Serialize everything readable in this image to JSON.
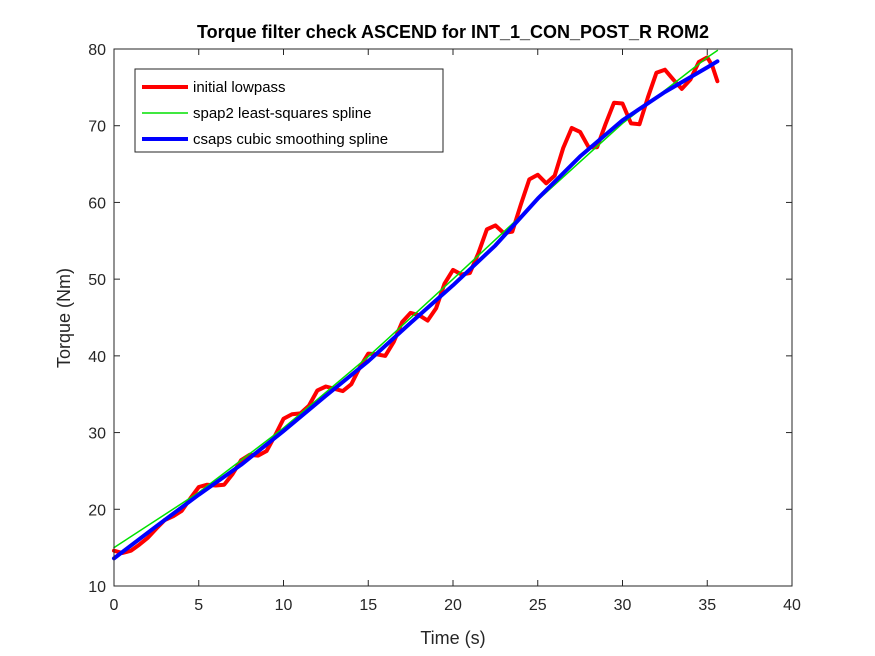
{
  "chart_data": {
    "type": "line",
    "title": "Torque filter check ASCEND for INT_1_CON_POST_R ROM2",
    "xlabel": "Time (s)",
    "ylabel": "Torque (Nm)",
    "xlim": [
      0,
      40
    ],
    "ylim": [
      10,
      80
    ],
    "xticks": [
      0,
      5,
      10,
      15,
      20,
      25,
      30,
      35,
      40
    ],
    "yticks": [
      10,
      20,
      30,
      40,
      50,
      60,
      70,
      80
    ],
    "grid": false,
    "legend_position": "top-left",
    "series": [
      {
        "name": "initial lowpass",
        "color": "#ff0000",
        "x": [
          0.0,
          0.5,
          1.0,
          1.5,
          2.0,
          2.5,
          3.0,
          3.5,
          4.0,
          4.5,
          5.0,
          5.5,
          6.0,
          6.5,
          7.0,
          7.5,
          8.0,
          8.5,
          9.0,
          9.5,
          10.0,
          10.5,
          11.0,
          11.5,
          12.0,
          12.5,
          13.0,
          13.5,
          14.0,
          14.5,
          15.0,
          15.5,
          16.0,
          16.5,
          17.0,
          17.5,
          18.0,
          18.5,
          19.0,
          19.5,
          20.0,
          20.5,
          21.0,
          21.5,
          22.0,
          22.5,
          23.0,
          23.5,
          24.0,
          24.5,
          25.0,
          25.5,
          26.0,
          26.5,
          27.0,
          27.5,
          28.0,
          28.5,
          29.0,
          29.5,
          30.0,
          30.5,
          31.0,
          31.5,
          32.0,
          32.5,
          33.0,
          33.5,
          34.0,
          34.5,
          35.0,
          35.3,
          35.6
        ],
        "values": [
          14.6,
          14.3,
          14.6,
          15.4,
          16.3,
          17.5,
          18.6,
          19.1,
          19.8,
          21.4,
          22.9,
          23.2,
          23.1,
          23.2,
          24.6,
          26.4,
          27.1,
          27.0,
          27.6,
          29.6,
          31.8,
          32.4,
          32.5,
          33.5,
          35.5,
          36.0,
          35.7,
          35.4,
          36.3,
          38.5,
          40.3,
          40.2,
          40.0,
          41.8,
          44.4,
          45.6,
          45.3,
          44.6,
          46.2,
          49.4,
          51.2,
          50.6,
          50.8,
          53.4,
          56.5,
          57.0,
          56.0,
          56.2,
          59.7,
          63.0,
          63.6,
          62.5,
          63.5,
          67.1,
          69.7,
          69.2,
          67.2,
          67.2,
          70.2,
          73.0,
          72.9,
          70.3,
          70.2,
          73.7,
          76.9,
          77.3,
          76.0,
          74.8,
          76.0,
          78.3,
          78.9,
          77.8,
          75.8
        ]
      },
      {
        "name": "spap2 least-squares spline",
        "color": "#00e000",
        "x": [
          0,
          5,
          10,
          15,
          20,
          25,
          30,
          35,
          35.6
        ],
        "values": [
          15.0,
          22.2,
          30.6,
          39.9,
          50.0,
          60.3,
          70.3,
          78.9,
          79.8
        ]
      },
      {
        "name": "csaps cubic smoothing spline",
        "color": "#0000ff",
        "x": [
          0,
          2.5,
          5,
          7.5,
          10,
          12.5,
          15,
          17.5,
          20,
          22.5,
          25,
          27.5,
          30,
          32.5,
          35,
          35.6
        ],
        "values": [
          13.6,
          17.8,
          21.9,
          25.8,
          30.2,
          34.8,
          39.3,
          44.3,
          49.2,
          54.4,
          60.5,
          66.0,
          70.7,
          74.4,
          77.6,
          78.4
        ]
      }
    ]
  }
}
